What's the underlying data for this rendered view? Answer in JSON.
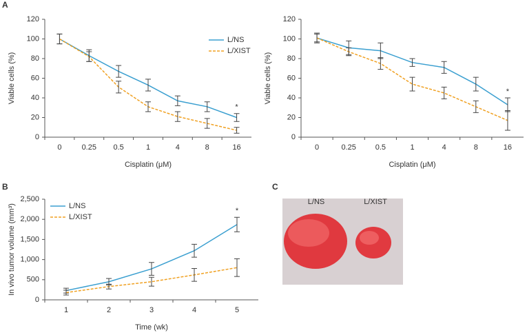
{
  "panel_labels": [
    "A",
    "B",
    "C"
  ],
  "chart_data": [
    {
      "type": "line",
      "xlabel": "Cisplatin (μM)",
      "ylabel": "Viable cells (%)",
      "categories": [
        "0",
        "0.25",
        "0.5",
        "1",
        "4",
        "8",
        "16"
      ],
      "ylim": [
        0,
        120
      ],
      "yticks": [
        0,
        20,
        40,
        60,
        80,
        100,
        120
      ],
      "legend": "upper right",
      "annotation": "*",
      "series": [
        {
          "name": "L/NS",
          "color": "#3a9fd0",
          "dashed": false,
          "values": [
            100,
            83,
            67,
            53,
            37,
            31,
            20
          ],
          "errors": [
            5,
            6,
            6,
            6,
            5,
            5,
            4
          ]
        },
        {
          "name": "L/XIST",
          "color": "#f0a020",
          "dashed": true,
          "values": [
            100,
            82,
            51,
            31,
            21,
            14,
            7
          ],
          "errors": [
            5,
            5,
            6,
            5,
            5,
            5,
            3
          ]
        }
      ]
    },
    {
      "type": "line",
      "xlabel": "Cisplatin (μM)",
      "ylabel": "Viable cells (%)",
      "categories": [
        "0",
        "0.25",
        "0.5",
        "1",
        "4",
        "8",
        "16"
      ],
      "ylim": [
        0,
        120
      ],
      "yticks": [
        0,
        20,
        40,
        60,
        80,
        100,
        120
      ],
      "annotation": "*",
      "series": [
        {
          "color": "#3a9fd0",
          "dashed": false,
          "values": [
            101,
            91,
            88,
            76,
            71,
            54,
            33
          ],
          "errors": [
            5,
            7,
            8,
            4,
            6,
            7,
            7
          ]
        },
        {
          "color": "#f0a020",
          "dashed": true,
          "values": [
            101,
            87,
            75,
            54,
            45,
            31,
            17
          ],
          "errors": [
            4,
            4,
            6,
            7,
            6,
            6,
            10
          ]
        }
      ]
    },
    {
      "type": "line",
      "xlabel": "Time (wk)",
      "ylabel": "In vivo tumor volume (mm³)",
      "categories": [
        "1",
        "2",
        "3",
        "4",
        "5"
      ],
      "ylim": [
        0,
        2500
      ],
      "yticks": [
        0,
        500,
        {
          "value": 1000,
          "label": "1,000"
        },
        {
          "value": 1500,
          "label": "1,500"
        },
        {
          "value": 2000,
          "label": "2,000"
        },
        {
          "value": 2500,
          "label": "2,500"
        }
      ],
      "legend": "upper left",
      "annotation": "*",
      "series": [
        {
          "name": "L/NS",
          "color": "#3a9fd0",
          "dashed": false,
          "values": [
            230,
            450,
            770,
            1220,
            1870
          ],
          "errors": [
            60,
            80,
            160,
            160,
            180
          ]
        },
        {
          "name": "L/XIST",
          "color": "#f0a020",
          "dashed": true,
          "values": [
            180,
            330,
            450,
            620,
            800
          ],
          "errors": [
            60,
            60,
            110,
            160,
            220
          ]
        }
      ]
    }
  ],
  "photo": {
    "labels": [
      "L/NS",
      "L/XIST"
    ]
  }
}
